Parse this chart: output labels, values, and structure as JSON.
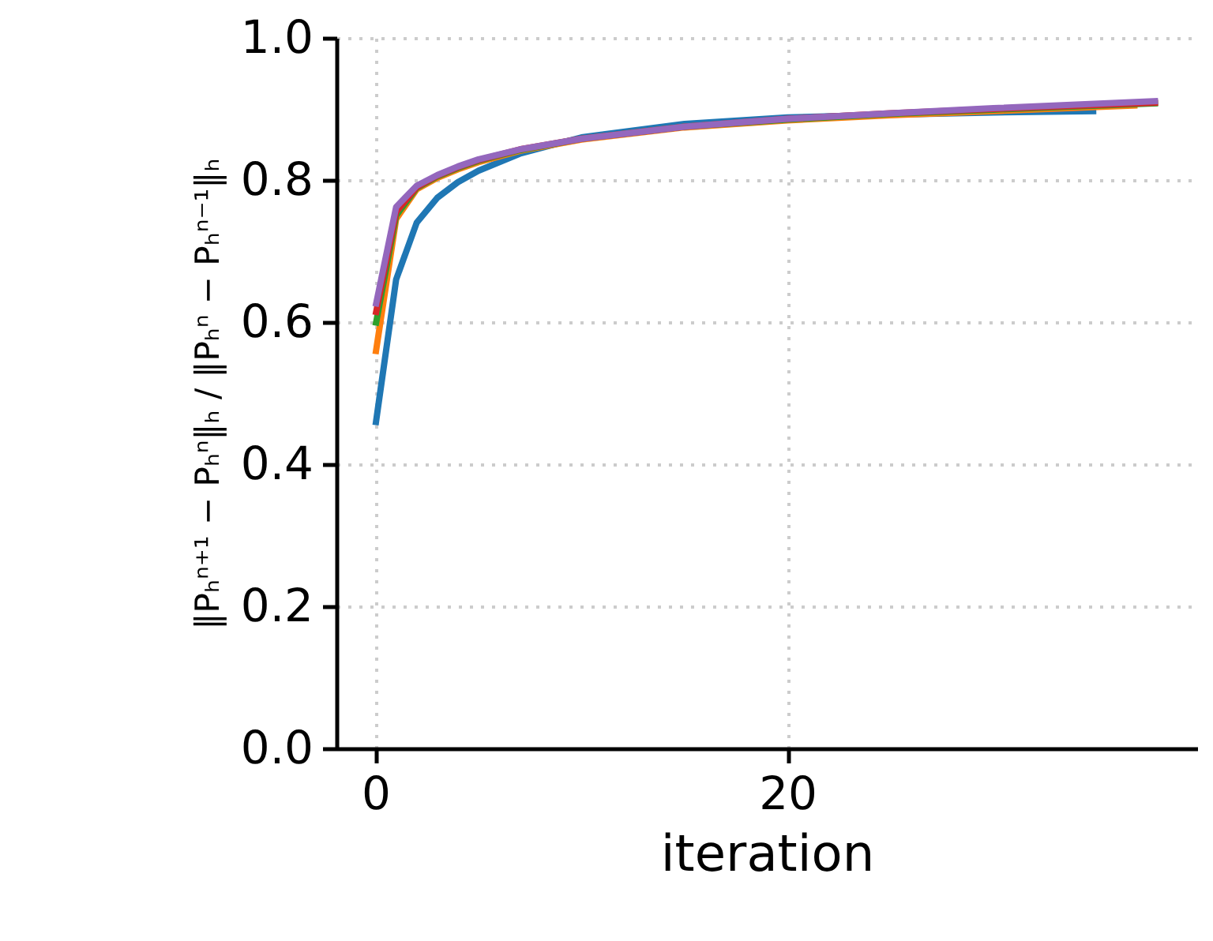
{
  "chart_data": {
    "type": "line",
    "xlabel": "iteration",
    "ylabel": "‖Pₕⁿ⁺¹ − Pₕⁿ‖ₕ / ‖Pₕⁿ − Pₕⁿ⁻¹‖ₕ",
    "xlim": [
      -1.9,
      39.9
    ],
    "ylim": [
      0,
      1
    ],
    "xticks": [
      0,
      20
    ],
    "yticks": [
      {
        "value": 0,
        "label": "0.0"
      },
      0.2,
      0.4,
      0.6,
      0.8,
      {
        "value": 1,
        "label": "1.0"
      }
    ],
    "grid": true,
    "series": [
      {
        "color": "#1f77b4",
        "x": [
          0,
          1,
          2,
          3,
          4,
          5,
          7,
          10,
          15,
          20,
          25,
          30,
          35
        ],
        "values": [
          0.455,
          0.66,
          0.74,
          0.775,
          0.797,
          0.813,
          0.837,
          0.86,
          0.879,
          0.888,
          0.892,
          0.895,
          0.897
        ]
      },
      {
        "color": "#ff7f0e",
        "x": [
          0,
          1,
          2,
          3,
          4,
          5,
          7,
          10,
          15,
          20,
          25,
          30,
          37
        ],
        "values": [
          0.555,
          0.745,
          0.787,
          0.803,
          0.815,
          0.825,
          0.841,
          0.857,
          0.874,
          0.884,
          0.891,
          0.897,
          0.905
        ]
      },
      {
        "color": "#2ca02c",
        "x": [
          0,
          1,
          2,
          3,
          4,
          5,
          7,
          10,
          15,
          20,
          25,
          30,
          38
        ],
        "values": [
          0.595,
          0.75,
          0.789,
          0.805,
          0.817,
          0.827,
          0.842,
          0.858,
          0.875,
          0.885,
          0.893,
          0.899,
          0.908
        ]
      },
      {
        "color": "#d62728",
        "x": [
          0,
          1,
          2,
          3,
          4,
          5,
          7,
          10,
          15,
          20,
          25,
          30,
          38
        ],
        "values": [
          0.61,
          0.755,
          0.79,
          0.806,
          0.818,
          0.828,
          0.843,
          0.858,
          0.875,
          0.886,
          0.894,
          0.9,
          0.909
        ]
      },
      {
        "color": "#9467bd",
        "x": [
          0,
          1,
          2,
          3,
          4,
          5,
          7,
          10,
          15,
          20,
          25,
          30,
          38
        ],
        "values": [
          0.622,
          0.762,
          0.792,
          0.807,
          0.819,
          0.829,
          0.843,
          0.858,
          0.875,
          0.886,
          0.894,
          0.901,
          0.911
        ]
      }
    ]
  }
}
